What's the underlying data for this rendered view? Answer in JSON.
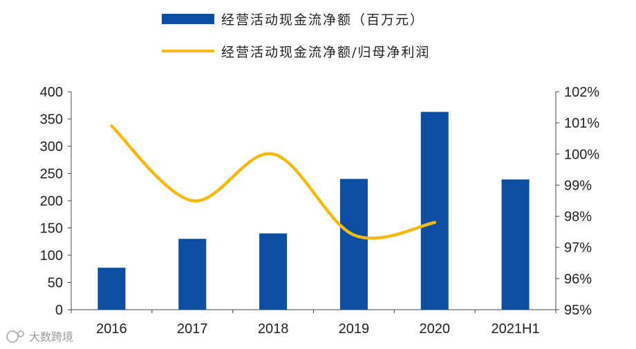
{
  "chart_data": {
    "type": "bar",
    "categories": [
      "2016",
      "2017",
      "2018",
      "2019",
      "2020",
      "2021H1"
    ],
    "series": [
      {
        "name": "经营活动现金流净额（百万元）",
        "type": "bar",
        "axis": "left",
        "color": "#0b4ea2",
        "values": [
          77,
          130,
          140,
          240,
          363,
          239
        ]
      },
      {
        "name": "经营活动现金流净额/归母净利润",
        "type": "line",
        "axis": "right",
        "color": "#f5b90f",
        "values": [
          100.9,
          98.5,
          100.0,
          97.4,
          97.8,
          null
        ]
      }
    ],
    "y_left": {
      "min": 0,
      "max": 400,
      "step": 50,
      "ticks": [
        "0",
        "50",
        "100",
        "150",
        "200",
        "250",
        "300",
        "350",
        "400"
      ]
    },
    "y_right": {
      "min": 95,
      "max": 102,
      "step": 1,
      "ticks": [
        "95%",
        "96%",
        "97%",
        "98%",
        "99%",
        "100%",
        "101%",
        "102%"
      ]
    },
    "legend_position": "top",
    "grid": false
  },
  "watermark": {
    "text": "大数跨境"
  }
}
